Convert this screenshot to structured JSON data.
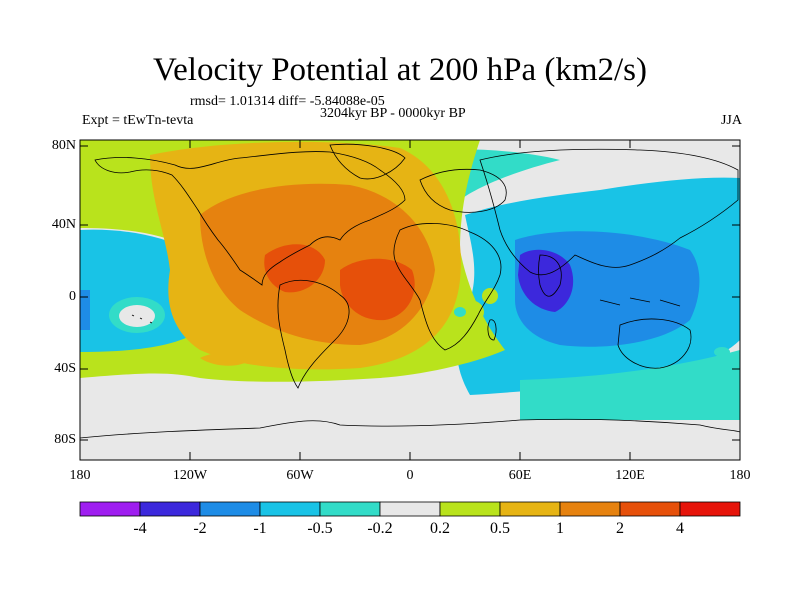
{
  "title": "Velocity Potential at 200 hPa (km2/s)",
  "stats_line": "rmsd= 1.01314 diff= -5.84088e-05",
  "period_line": "3204kyr BP - 0000kyr BP",
  "experiment_label": "Expt = tEwTn-tevta",
  "season_label": "JJA",
  "lat_labels": [
    "80N",
    "40N",
    "0",
    "40S",
    "80S"
  ],
  "lon_labels": [
    "180",
    "120W",
    "60W",
    "0",
    "60E",
    "120E",
    "180"
  ],
  "colorbar": {
    "levels": [
      "-4",
      "-2",
      "-1",
      "-0.5",
      "-0.2",
      "0.2",
      "0.5",
      "1",
      "2",
      "4"
    ],
    "colors": [
      "#9f1ef0",
      "#3c28dc",
      "#1e8ce6",
      "#19c3e6",
      "#32dcc8",
      "#e8e8e8",
      "#b9e31c",
      "#e6b414",
      "#e6820f",
      "#e6500a",
      "#e6140a"
    ]
  },
  "coastline_color": "#000000"
}
